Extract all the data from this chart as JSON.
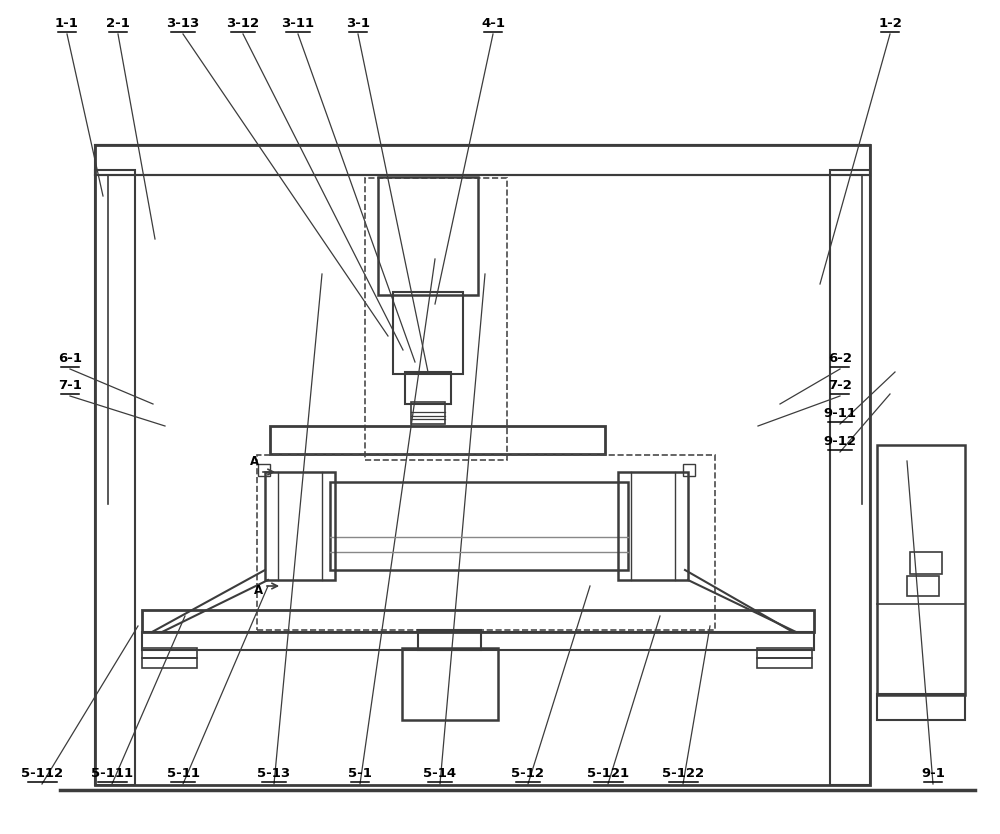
{
  "bg": "#ffffff",
  "lc": "#3c3c3c",
  "dc": "#4a4a4a",
  "fw": 10.0,
  "fh": 8.34,
  "dpi": 100,
  "labels": [
    [
      "1-1",
      67,
      800,
      103,
      638
    ],
    [
      "2-1",
      118,
      800,
      155,
      595
    ],
    [
      "3-13",
      183,
      800,
      388,
      498
    ],
    [
      "3-12",
      243,
      800,
      403,
      484
    ],
    [
      "3-11",
      298,
      800,
      415,
      472
    ],
    [
      "3-1",
      358,
      800,
      428,
      462
    ],
    [
      "4-1",
      493,
      800,
      435,
      530
    ],
    [
      "1-2",
      890,
      800,
      820,
      550
    ],
    [
      "6-1",
      70,
      465,
      153,
      430
    ],
    [
      "7-1",
      70,
      438,
      165,
      408
    ],
    [
      "6-2",
      840,
      465,
      780,
      430
    ],
    [
      "7-2",
      840,
      438,
      758,
      408
    ],
    [
      "9-11",
      840,
      410,
      895,
      462
    ],
    [
      "9-12",
      840,
      382,
      890,
      440
    ],
    [
      "5-112",
      42,
      50,
      138,
      208
    ],
    [
      "5-111",
      112,
      50,
      185,
      218
    ],
    [
      "5-11",
      183,
      50,
      268,
      248
    ],
    [
      "5-13",
      274,
      50,
      322,
      560
    ],
    [
      "5-1",
      360,
      50,
      435,
      575
    ],
    [
      "5-14",
      440,
      50,
      485,
      560
    ],
    [
      "5-12",
      528,
      50,
      590,
      248
    ],
    [
      "5-121",
      608,
      50,
      660,
      218
    ],
    [
      "5-122",
      683,
      50,
      710,
      208
    ],
    [
      "9-1",
      933,
      50,
      907,
      373
    ]
  ]
}
